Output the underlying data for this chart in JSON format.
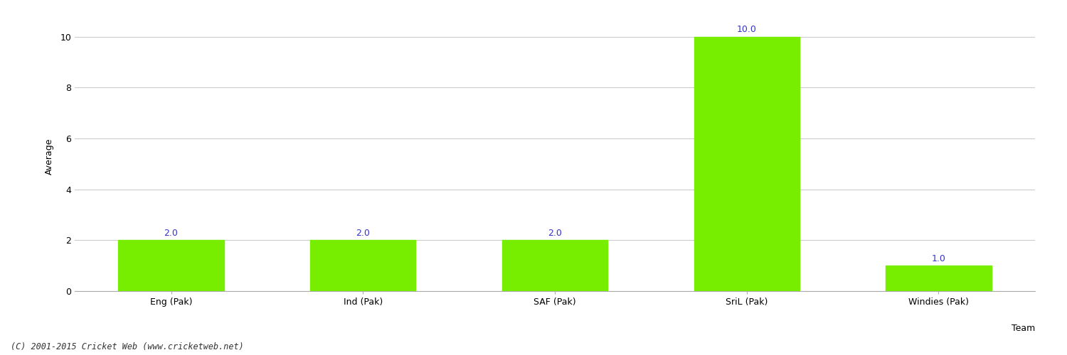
{
  "categories": [
    "Eng (Pak)",
    "Ind (Pak)",
    "SAF (Pak)",
    "SriL (Pak)",
    "Windies (Pak)"
  ],
  "values": [
    2.0,
    2.0,
    2.0,
    10.0,
    1.0
  ],
  "bar_color": "#77ee00",
  "bar_edgecolor": "#77ee00",
  "label_color": "#3333cc",
  "ylabel": "Average",
  "xlabel": "Team",
  "ylim": [
    0,
    10.6
  ],
  "yticks": [
    0,
    2,
    4,
    6,
    8,
    10
  ],
  "value_labels": [
    "2.0",
    "2.0",
    "2.0",
    "10.0",
    "1.0"
  ],
  "footer": "(C) 2001-2015 Cricket Web (www.cricketweb.net)",
  "background_color": "#ffffff",
  "grid_color": "#cccccc",
  "label_fontsize": 9,
  "axis_fontsize": 9,
  "footer_fontsize": 8.5,
  "bar_width": 0.55
}
